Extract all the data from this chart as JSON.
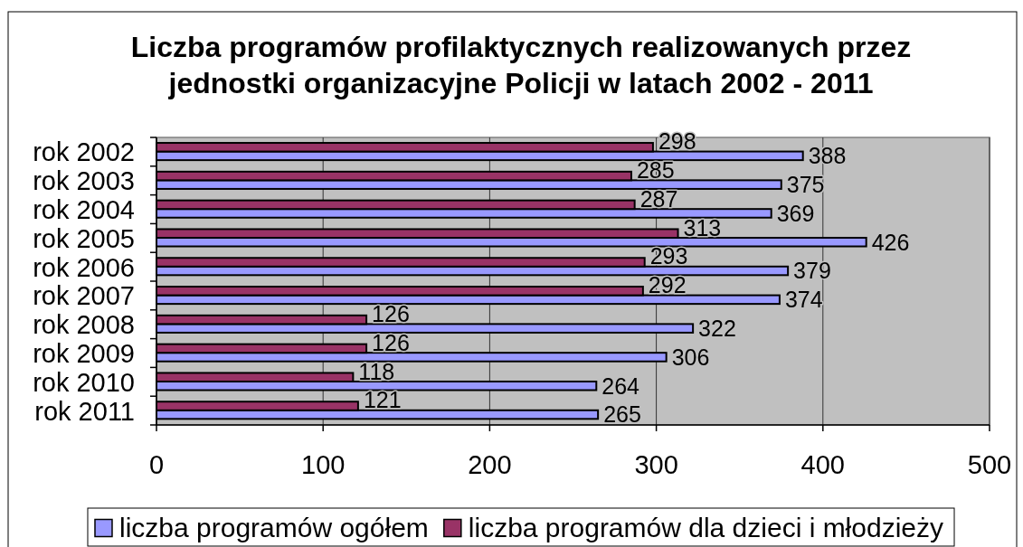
{
  "chart_data": {
    "type": "bar",
    "orientation": "horizontal",
    "title": "Liczba programów profilaktycznych realizowanych przez jednostki organizacyjne Policji w latach 2002 - 2011",
    "categories": [
      "rok 2002",
      "rok 2003",
      "rok 2004",
      "rok 2005",
      "rok 2006",
      "rok 2007",
      "rok 2008",
      "rok 2009",
      "rok 2010",
      "rok 2011"
    ],
    "series": [
      {
        "name": "liczba programów ogółem",
        "color": "#9999ff",
        "values": [
          388,
          375,
          369,
          426,
          379,
          374,
          322,
          306,
          264,
          265
        ]
      },
      {
        "name": "liczba programów dla dzieci i młodzieży",
        "color": "#993366",
        "values": [
          298,
          285,
          287,
          313,
          293,
          292,
          126,
          126,
          118,
          121
        ]
      }
    ],
    "xlim": [
      0,
      500
    ],
    "xticks": [
      0,
      100,
      200,
      300,
      400,
      500
    ],
    "grid": "x",
    "legend": "bottom",
    "data_labels": true
  }
}
